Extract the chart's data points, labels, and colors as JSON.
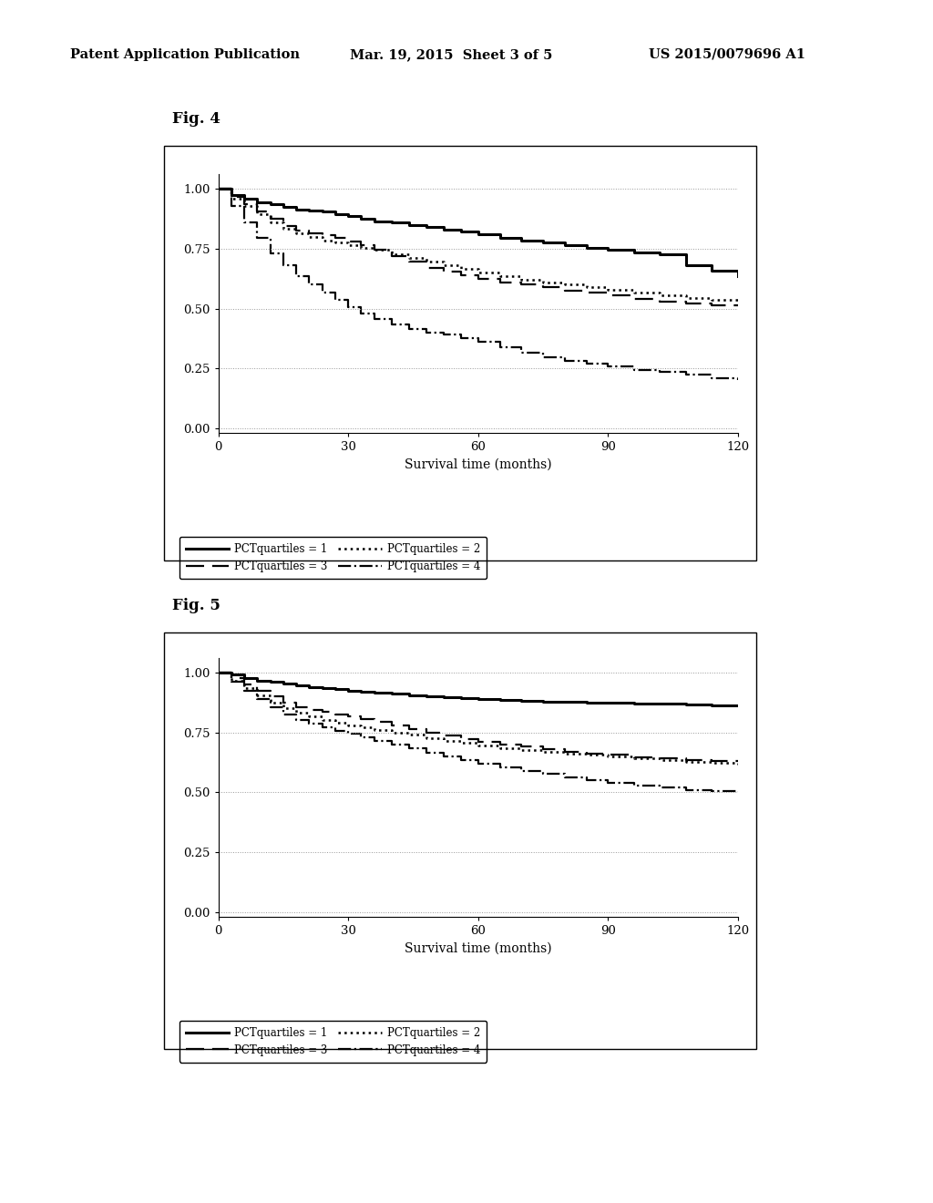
{
  "header_left": "Patent Application Publication",
  "header_mid": "Mar. 19, 2015  Sheet 3 of 5",
  "header_right": "US 2015/0079696 A1",
  "fig4_label": "Fig. 4",
  "fig5_label": "Fig. 5",
  "xlabel": "Survival time (months)",
  "xlim": [
    0,
    120
  ],
  "ylim": [
    -0.02,
    1.06
  ],
  "xticks": [
    0,
    30,
    60,
    90,
    120
  ],
  "yticks": [
    0.0,
    0.25,
    0.5,
    0.75,
    1.0
  ],
  "background_color": "#ffffff",
  "legend_entries": [
    "PCTquartiles = 1",
    "PCTquartiles = 2",
    "PCTquartiles = 3",
    "PCTquartiles = 4"
  ],
  "fig4": {
    "q1_x": [
      0,
      3,
      6,
      9,
      12,
      15,
      18,
      21,
      24,
      27,
      30,
      33,
      36,
      40,
      44,
      48,
      52,
      56,
      60,
      65,
      70,
      75,
      80,
      85,
      90,
      96,
      102,
      108,
      114,
      120
    ],
    "q1_y": [
      1.0,
      0.975,
      0.96,
      0.945,
      0.935,
      0.925,
      0.915,
      0.91,
      0.905,
      0.895,
      0.885,
      0.875,
      0.865,
      0.86,
      0.85,
      0.84,
      0.83,
      0.82,
      0.81,
      0.795,
      0.785,
      0.775,
      0.765,
      0.755,
      0.745,
      0.735,
      0.725,
      0.68,
      0.66,
      0.635
    ],
    "q2_x": [
      0,
      3,
      6,
      9,
      12,
      15,
      18,
      21,
      24,
      27,
      30,
      33,
      36,
      40,
      44,
      48,
      52,
      56,
      60,
      65,
      70,
      75,
      80,
      85,
      90,
      96,
      102,
      108,
      114,
      120
    ],
    "q2_y": [
      1.0,
      0.965,
      0.935,
      0.905,
      0.875,
      0.845,
      0.825,
      0.815,
      0.805,
      0.795,
      0.78,
      0.765,
      0.745,
      0.72,
      0.695,
      0.67,
      0.655,
      0.64,
      0.625,
      0.61,
      0.6,
      0.59,
      0.575,
      0.565,
      0.555,
      0.54,
      0.53,
      0.52,
      0.515,
      0.51
    ],
    "q3_x": [
      0,
      3,
      6,
      9,
      12,
      15,
      18,
      21,
      24,
      27,
      30,
      33,
      36,
      40,
      44,
      48,
      52,
      56,
      60,
      65,
      70,
      75,
      80,
      85,
      90,
      96,
      102,
      108,
      114,
      120
    ],
    "q3_y": [
      1.0,
      0.96,
      0.93,
      0.895,
      0.86,
      0.835,
      0.815,
      0.8,
      0.785,
      0.775,
      0.765,
      0.755,
      0.745,
      0.725,
      0.71,
      0.695,
      0.68,
      0.665,
      0.65,
      0.635,
      0.62,
      0.61,
      0.6,
      0.59,
      0.58,
      0.565,
      0.555,
      0.545,
      0.535,
      0.525
    ],
    "q4_x": [
      0,
      3,
      6,
      9,
      12,
      15,
      18,
      21,
      24,
      27,
      30,
      33,
      36,
      40,
      44,
      48,
      52,
      56,
      60,
      65,
      70,
      75,
      80,
      85,
      90,
      96,
      102,
      108,
      114,
      120
    ],
    "q4_y": [
      1.0,
      0.93,
      0.86,
      0.795,
      0.73,
      0.68,
      0.635,
      0.6,
      0.565,
      0.535,
      0.505,
      0.48,
      0.455,
      0.435,
      0.415,
      0.4,
      0.39,
      0.375,
      0.36,
      0.34,
      0.315,
      0.295,
      0.28,
      0.27,
      0.26,
      0.245,
      0.235,
      0.225,
      0.21,
      0.2
    ]
  },
  "fig5": {
    "q1_x": [
      0,
      3,
      6,
      9,
      12,
      15,
      18,
      21,
      24,
      27,
      30,
      33,
      36,
      40,
      44,
      48,
      52,
      56,
      60,
      65,
      70,
      75,
      80,
      85,
      90,
      96,
      102,
      108,
      114,
      120
    ],
    "q1_y": [
      1.0,
      0.99,
      0.975,
      0.965,
      0.96,
      0.955,
      0.945,
      0.94,
      0.935,
      0.93,
      0.925,
      0.92,
      0.915,
      0.91,
      0.905,
      0.9,
      0.895,
      0.892,
      0.888,
      0.885,
      0.882,
      0.879,
      0.876,
      0.874,
      0.872,
      0.87,
      0.868,
      0.866,
      0.864,
      0.862
    ],
    "q2_x": [
      0,
      3,
      6,
      9,
      12,
      15,
      18,
      21,
      24,
      27,
      30,
      33,
      36,
      40,
      44,
      48,
      52,
      56,
      60,
      65,
      70,
      75,
      80,
      85,
      90,
      96,
      102,
      108,
      114,
      120
    ],
    "q2_y": [
      1.0,
      0.975,
      0.95,
      0.925,
      0.9,
      0.875,
      0.855,
      0.845,
      0.835,
      0.825,
      0.815,
      0.805,
      0.795,
      0.78,
      0.765,
      0.75,
      0.735,
      0.72,
      0.71,
      0.7,
      0.69,
      0.68,
      0.67,
      0.66,
      0.655,
      0.645,
      0.64,
      0.635,
      0.63,
      0.625
    ],
    "q3_x": [
      0,
      3,
      6,
      9,
      12,
      15,
      18,
      21,
      24,
      27,
      30,
      33,
      36,
      40,
      44,
      48,
      52,
      56,
      60,
      65,
      70,
      75,
      80,
      85,
      90,
      96,
      102,
      108,
      114,
      120
    ],
    "q3_y": [
      1.0,
      0.965,
      0.935,
      0.905,
      0.875,
      0.85,
      0.83,
      0.815,
      0.8,
      0.79,
      0.78,
      0.77,
      0.76,
      0.75,
      0.74,
      0.725,
      0.715,
      0.705,
      0.695,
      0.685,
      0.675,
      0.668,
      0.661,
      0.655,
      0.648,
      0.64,
      0.633,
      0.627,
      0.621,
      0.616
    ],
    "q4_x": [
      0,
      3,
      6,
      9,
      12,
      15,
      18,
      21,
      24,
      27,
      30,
      33,
      36,
      40,
      44,
      48,
      52,
      56,
      60,
      65,
      70,
      75,
      80,
      85,
      90,
      96,
      102,
      108,
      114,
      120
    ],
    "q4_y": [
      1.0,
      0.96,
      0.925,
      0.89,
      0.855,
      0.825,
      0.8,
      0.785,
      0.77,
      0.755,
      0.745,
      0.73,
      0.715,
      0.7,
      0.685,
      0.665,
      0.65,
      0.635,
      0.62,
      0.605,
      0.59,
      0.575,
      0.562,
      0.55,
      0.54,
      0.528,
      0.518,
      0.51,
      0.504,
      0.499
    ]
  }
}
